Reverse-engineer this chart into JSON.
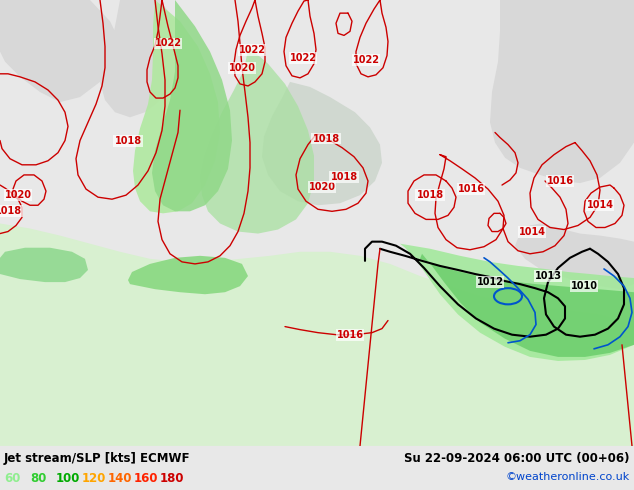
{
  "title_left": "Jet stream/SLP [kts] ECMWF",
  "title_right": "Su 22-09-2024 06:00 UTC (00+06)",
  "credit": "©weatheronline.co.uk",
  "legend_values": [
    "60",
    "80",
    "100",
    "120",
    "140",
    "160",
    "180"
  ],
  "legend_colors": [
    "#90ee90",
    "#32cd32",
    "#00aa00",
    "#ffa500",
    "#ff6600",
    "#ff2200",
    "#cc0000"
  ],
  "bg_light_green": "#c8f0b0",
  "bg_gray": "#d0d0d0",
  "bg_sea_light": "#ddeedd",
  "jet_green1": "#a8e8a0",
  "jet_green2": "#68d068",
  "jet_green3": "#48c878",
  "red": "#cc0000",
  "black": "#000000",
  "blue": "#0055cc",
  "figwidth": 6.34,
  "figheight": 4.9,
  "dpi": 100
}
